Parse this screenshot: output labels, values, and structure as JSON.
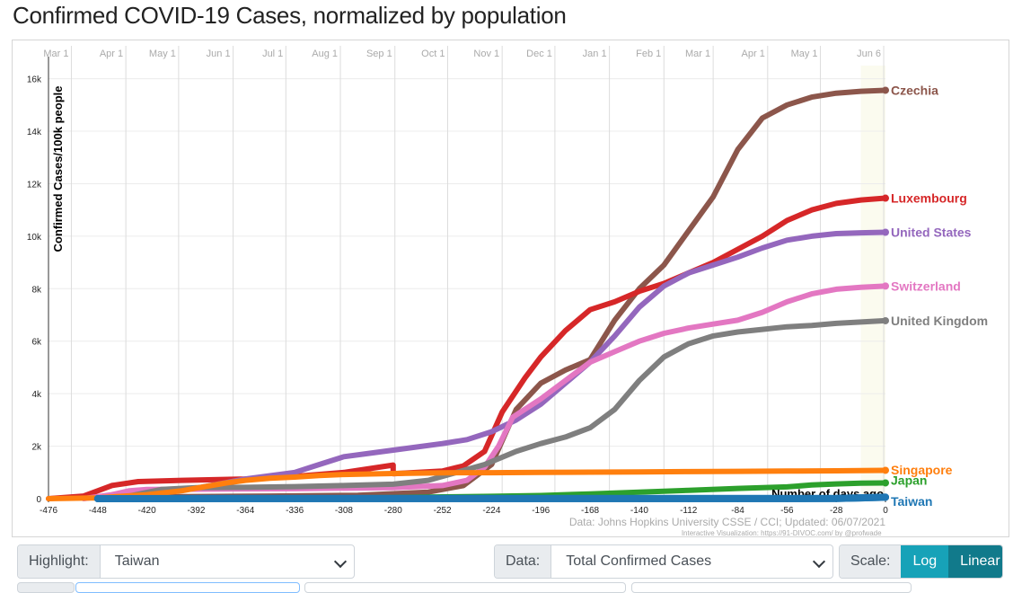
{
  "page": {
    "title": "Confirmed COVID-19 Cases, normalized by population"
  },
  "chart_data": {
    "type": "line",
    "title": "Confirmed COVID-19 Cases, normalized by population",
    "xlabel": "Number of days ago",
    "ylabel": "Confirmed Cases/100k people",
    "xlim": [
      -476,
      0
    ],
    "ylim": [
      0,
      16500
    ],
    "x_ticks": [
      -476,
      -448,
      -420,
      -392,
      -364,
      -336,
      -308,
      -280,
      -252,
      -224,
      -196,
      -168,
      -140,
      -112,
      -84,
      -56,
      -28,
      0
    ],
    "y_ticks": [
      0,
      2000,
      4000,
      6000,
      8000,
      10000,
      12000,
      14000,
      16000
    ],
    "y_tick_labels": [
      "0",
      "2k",
      "4k",
      "6k",
      "8k",
      "10k",
      "12k",
      "14k",
      "16k"
    ],
    "date_axis": [
      {
        "label": "Mar 1",
        "x": -463
      },
      {
        "label": "Apr 1",
        "x": -432
      },
      {
        "label": "May 1",
        "x": -402
      },
      {
        "label": "Jun 1",
        "x": -371
      },
      {
        "label": "Jul 1",
        "x": -341
      },
      {
        "label": "Aug 1",
        "x": -310
      },
      {
        "label": "Sep 1",
        "x": -279
      },
      {
        "label": "Oct 1",
        "x": -249
      },
      {
        "label": "Nov 1",
        "x": -218
      },
      {
        "label": "Dec 1",
        "x": -188
      },
      {
        "label": "Jan 1",
        "x": -157
      },
      {
        "label": "Feb 1",
        "x": -126
      },
      {
        "label": "Mar 1",
        "x": -98
      },
      {
        "label": "Apr 1",
        "x": -67
      },
      {
        "label": "May 1",
        "x": -37
      },
      {
        "label": "Jun 6",
        "x": -1
      }
    ],
    "series": [
      {
        "name": "Czechia",
        "color": "#8c564b",
        "points": [
          [
            -445,
            0
          ],
          [
            -430,
            60
          ],
          [
            -400,
            80
          ],
          [
            -350,
            100
          ],
          [
            -300,
            130
          ],
          [
            -260,
            250
          ],
          [
            -240,
            500
          ],
          [
            -224,
            1300
          ],
          [
            -210,
            3400
          ],
          [
            -196,
            4400
          ],
          [
            -182,
            4900
          ],
          [
            -168,
            5300
          ],
          [
            -154,
            6800
          ],
          [
            -140,
            8000
          ],
          [
            -126,
            8900
          ],
          [
            -112,
            10200
          ],
          [
            -98,
            11500
          ],
          [
            -84,
            13300
          ],
          [
            -70,
            14500
          ],
          [
            -56,
            15000
          ],
          [
            -42,
            15300
          ],
          [
            -28,
            15450
          ],
          [
            -14,
            15520
          ],
          [
            0,
            15560
          ]
        ]
      },
      {
        "name": "Luxembourg",
        "color": "#d62728",
        "points": [
          [
            -476,
            0
          ],
          [
            -456,
            100
          ],
          [
            -440,
            500
          ],
          [
            -425,
            650
          ],
          [
            -400,
            700
          ],
          [
            -364,
            750
          ],
          [
            -336,
            850
          ],
          [
            -308,
            1000
          ],
          [
            -280,
            1280
          ],
          [
            -280,
            950
          ],
          [
            -252,
            1050
          ],
          [
            -240,
            1250
          ],
          [
            -228,
            1800
          ],
          [
            -218,
            3300
          ],
          [
            -205,
            4600
          ],
          [
            -196,
            5400
          ],
          [
            -182,
            6400
          ],
          [
            -168,
            7200
          ],
          [
            -154,
            7500
          ],
          [
            -140,
            7900
          ],
          [
            -126,
            8200
          ],
          [
            -112,
            8600
          ],
          [
            -98,
            9000
          ],
          [
            -84,
            9500
          ],
          [
            -70,
            10000
          ],
          [
            -56,
            10600
          ],
          [
            -42,
            11000
          ],
          [
            -28,
            11250
          ],
          [
            -14,
            11380
          ],
          [
            0,
            11450
          ]
        ]
      },
      {
        "name": "United States",
        "color": "#9467bd",
        "points": [
          [
            -448,
            0
          ],
          [
            -430,
            80
          ],
          [
            -412,
            200
          ],
          [
            -392,
            400
          ],
          [
            -364,
            750
          ],
          [
            -336,
            1000
          ],
          [
            -322,
            1300
          ],
          [
            -308,
            1600
          ],
          [
            -280,
            1850
          ],
          [
            -252,
            2100
          ],
          [
            -238,
            2250
          ],
          [
            -224,
            2550
          ],
          [
            -210,
            3000
          ],
          [
            -196,
            3600
          ],
          [
            -182,
            4400
          ],
          [
            -168,
            5200
          ],
          [
            -154,
            6200
          ],
          [
            -140,
            7300
          ],
          [
            -126,
            8100
          ],
          [
            -112,
            8600
          ],
          [
            -98,
            8900
          ],
          [
            -84,
            9200
          ],
          [
            -70,
            9550
          ],
          [
            -56,
            9850
          ],
          [
            -42,
            10000
          ],
          [
            -28,
            10100
          ],
          [
            -14,
            10130
          ],
          [
            0,
            10150
          ]
        ]
      },
      {
        "name": "Switzerland",
        "color": "#e377c2",
        "points": [
          [
            -456,
            0
          ],
          [
            -440,
            150
          ],
          [
            -430,
            300
          ],
          [
            -420,
            350
          ],
          [
            -392,
            360
          ],
          [
            -336,
            380
          ],
          [
            -280,
            420
          ],
          [
            -252,
            500
          ],
          [
            -238,
            700
          ],
          [
            -228,
            1200
          ],
          [
            -220,
            2000
          ],
          [
            -212,
            3100
          ],
          [
            -196,
            3800
          ],
          [
            -182,
            4500
          ],
          [
            -168,
            5200
          ],
          [
            -154,
            5600
          ],
          [
            -140,
            6000
          ],
          [
            -126,
            6300
          ],
          [
            -112,
            6500
          ],
          [
            -98,
            6650
          ],
          [
            -84,
            6800
          ],
          [
            -70,
            7100
          ],
          [
            -56,
            7500
          ],
          [
            -42,
            7800
          ],
          [
            -28,
            7980
          ],
          [
            -14,
            8050
          ],
          [
            0,
            8100
          ]
        ]
      },
      {
        "name": "United Kingdom",
        "color": "#7f7f7f",
        "points": [
          [
            -448,
            0
          ],
          [
            -430,
            100
          ],
          [
            -412,
            350
          ],
          [
            -392,
            420
          ],
          [
            -364,
            430
          ],
          [
            -336,
            460
          ],
          [
            -308,
            500
          ],
          [
            -280,
            550
          ],
          [
            -260,
            700
          ],
          [
            -244,
            1000
          ],
          [
            -228,
            1300
          ],
          [
            -210,
            1800
          ],
          [
            -196,
            2100
          ],
          [
            -182,
            2350
          ],
          [
            -168,
            2700
          ],
          [
            -154,
            3400
          ],
          [
            -140,
            4500
          ],
          [
            -126,
            5400
          ],
          [
            -112,
            5900
          ],
          [
            -98,
            6200
          ],
          [
            -84,
            6350
          ],
          [
            -70,
            6450
          ],
          [
            -56,
            6550
          ],
          [
            -42,
            6600
          ],
          [
            -28,
            6680
          ],
          [
            -14,
            6730
          ],
          [
            0,
            6780
          ]
        ]
      },
      {
        "name": "Singapore",
        "color": "#ff7f0e",
        "points": [
          [
            -476,
            0
          ],
          [
            -448,
            30
          ],
          [
            -420,
            150
          ],
          [
            -400,
            300
          ],
          [
            -392,
            400
          ],
          [
            -375,
            600
          ],
          [
            -364,
            700
          ],
          [
            -350,
            780
          ],
          [
            -336,
            820
          ],
          [
            -322,
            880
          ],
          [
            -308,
            920
          ],
          [
            -280,
            960
          ],
          [
            -252,
            985
          ],
          [
            -224,
            990
          ],
          [
            -196,
            1000
          ],
          [
            -168,
            1010
          ],
          [
            -140,
            1020
          ],
          [
            -112,
            1030
          ],
          [
            -84,
            1040
          ],
          [
            -56,
            1050
          ],
          [
            -28,
            1060
          ],
          [
            0,
            1080
          ]
        ]
      },
      {
        "name": "Japan",
        "color": "#2ca02c",
        "points": [
          [
            -448,
            0
          ],
          [
            -400,
            10
          ],
          [
            -364,
            20
          ],
          [
            -308,
            30
          ],
          [
            -280,
            45
          ],
          [
            -252,
            70
          ],
          [
            -224,
            90
          ],
          [
            -196,
            120
          ],
          [
            -168,
            180
          ],
          [
            -140,
            250
          ],
          [
            -112,
            320
          ],
          [
            -84,
            390
          ],
          [
            -56,
            450
          ],
          [
            -42,
            520
          ],
          [
            -28,
            560
          ],
          [
            -14,
            590
          ],
          [
            0,
            600
          ]
        ]
      },
      {
        "name": "Taiwan",
        "color": "#1f77b4",
        "points": [
          [
            -448,
            0
          ],
          [
            -364,
            2
          ],
          [
            -252,
            3
          ],
          [
            -140,
            4
          ],
          [
            -56,
            5
          ],
          [
            -28,
            8
          ],
          [
            -14,
            30
          ],
          [
            0,
            55
          ]
        ]
      }
    ],
    "annotations": [
      "Data: Johns Hopkins University CSSE / CCI; Updated: 06/07/2021",
      "Interactive Visualization: https://91-DIVOC.com/ by @profwade_"
    ],
    "grid": true,
    "legend": "end-of-line labels"
  },
  "controls": {
    "highlight_label": "Highlight:",
    "highlight_value": "Taiwan",
    "data_label": "Data:",
    "data_value": "Total Confirmed Cases",
    "scale_label": "Scale:",
    "scale_log": "Log",
    "scale_linear": "Linear"
  },
  "colors": {
    "scale_log": "#17a2b8",
    "scale_linear": "#117a8b"
  }
}
